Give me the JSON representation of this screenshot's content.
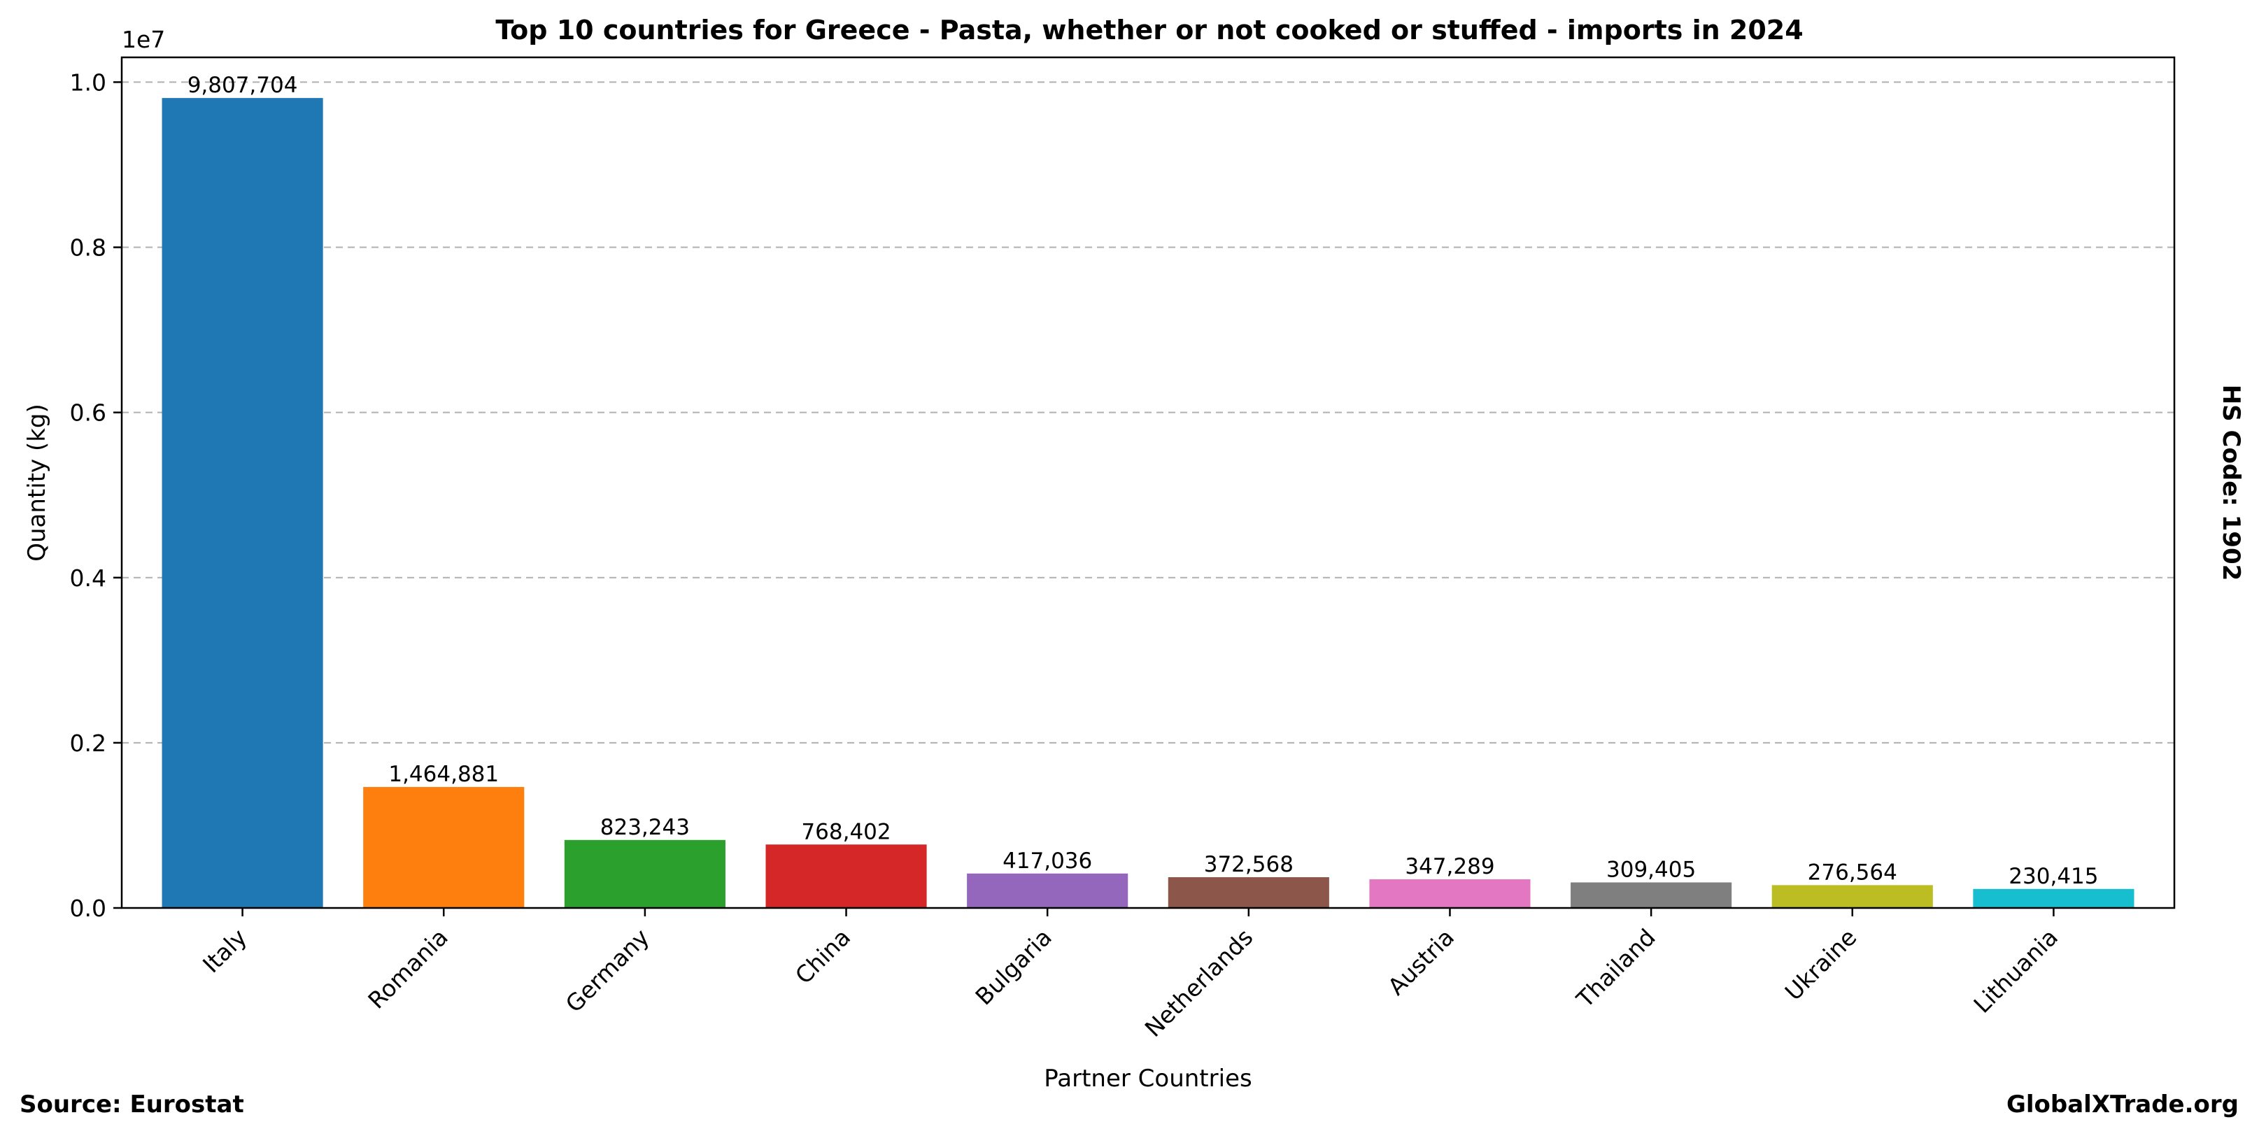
{
  "chart_data": {
    "type": "bar",
    "title": "Top 10 countries for Greece - Pasta, whether or not cooked or stuffed - imports in 2024",
    "xlabel": "Partner Countries",
    "ylabel": "Quantity (kg)",
    "y_scale_label": "1e7",
    "y_ticks": [
      "0.0",
      "0.2",
      "0.4",
      "0.6",
      "0.8",
      "1.0"
    ],
    "ylim": [
      0,
      10300000
    ],
    "grid": "y-dashed",
    "categories": [
      "Italy",
      "Romania",
      "Germany",
      "China",
      "Bulgaria",
      "Netherlands",
      "Austria",
      "Thailand",
      "Ukraine",
      "Lithuania"
    ],
    "values": [
      9807704,
      1464881,
      823243,
      768402,
      417036,
      372568,
      347289,
      309405,
      276564,
      230415
    ],
    "value_labels": [
      "9,807,704",
      "1,464,881",
      "823,243",
      "768,402",
      "417,036",
      "372,568",
      "347,289",
      "309,405",
      "276,564",
      "230,415"
    ],
    "colors": [
      "#1f77b4",
      "#ff7f0e",
      "#2ca02c",
      "#d62728",
      "#9467bd",
      "#8c564b",
      "#e377c2",
      "#7f7f7f",
      "#bcbd22",
      "#17becf"
    ]
  },
  "side_note": "HS Code: 1902",
  "footer": {
    "source": "Source: Eurostat",
    "brand": "GlobalXTrade.org"
  }
}
